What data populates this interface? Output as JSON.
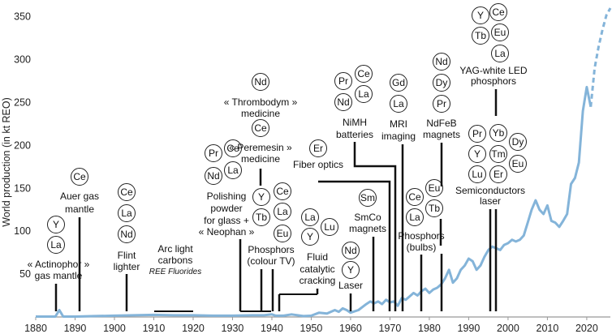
{
  "chart_data": {
    "type": "line",
    "ylabel": "World production (in kt REO)",
    "xlabel": "",
    "xlim": [
      1880,
      2026
    ],
    "ylim": [
      0,
      360
    ],
    "xticks": [
      1880,
      1890,
      1900,
      1910,
      1920,
      1930,
      1940,
      1950,
      1960,
      1970,
      1980,
      1990,
      2000,
      2010,
      2020
    ],
    "yticks": [
      50,
      100,
      150,
      200,
      250,
      300,
      350
    ],
    "grid": false,
    "line_color": "#84b4d9",
    "series": [
      {
        "values": [
          [
            1880,
            0.5
          ],
          [
            1885,
            0.5
          ],
          [
            1886,
            8
          ],
          [
            1887,
            0.5
          ],
          [
            1890,
            0.5
          ],
          [
            1895,
            1
          ],
          [
            1900,
            1.5
          ],
          [
            1905,
            2
          ],
          [
            1910,
            2.5
          ],
          [
            1915,
            2
          ],
          [
            1920,
            2
          ],
          [
            1925,
            1.5
          ],
          [
            1930,
            1.5
          ],
          [
            1935,
            2
          ],
          [
            1938,
            2
          ],
          [
            1940,
            3
          ],
          [
            1941,
            1.5
          ],
          [
            1943,
            1.5
          ],
          [
            1945,
            3
          ],
          [
            1948,
            1
          ],
          [
            1950,
            1.5
          ],
          [
            1952,
            5
          ],
          [
            1954,
            4
          ],
          [
            1956,
            8
          ],
          [
            1957,
            6
          ],
          [
            1958,
            10
          ],
          [
            1959,
            8
          ],
          [
            1960,
            5
          ],
          [
            1962,
            8
          ],
          [
            1964,
            15
          ],
          [
            1965,
            18
          ],
          [
            1966,
            16
          ],
          [
            1967,
            18
          ],
          [
            1968,
            15
          ],
          [
            1969,
            20
          ],
          [
            1970,
            17
          ],
          [
            1971,
            18
          ],
          [
            1972,
            13
          ],
          [
            1973,
            22
          ],
          [
            1974,
            20
          ],
          [
            1975,
            24
          ],
          [
            1976,
            28
          ],
          [
            1977,
            25
          ],
          [
            1978,
            30
          ],
          [
            1979,
            33
          ],
          [
            1980,
            28
          ],
          [
            1981,
            32
          ],
          [
            1982,
            34
          ],
          [
            1983,
            38
          ],
          [
            1984,
            45
          ],
          [
            1985,
            55
          ],
          [
            1986,
            40
          ],
          [
            1987,
            45
          ],
          [
            1988,
            55
          ],
          [
            1989,
            60
          ],
          [
            1990,
            68
          ],
          [
            1991,
            65
          ],
          [
            1992,
            55
          ],
          [
            1993,
            60
          ],
          [
            1994,
            70
          ],
          [
            1995,
            78
          ],
          [
            1996,
            82
          ],
          [
            1997,
            80
          ],
          [
            1998,
            78
          ],
          [
            1999,
            84
          ],
          [
            2000,
            86
          ],
          [
            2001,
            90
          ],
          [
            2002,
            88
          ],
          [
            2003,
            90
          ],
          [
            2004,
            95
          ],
          [
            2005,
            110
          ],
          [
            2006,
            125
          ],
          [
            2007,
            136
          ],
          [
            2008,
            125
          ],
          [
            2009,
            120
          ],
          [
            2010,
            130
          ],
          [
            2011,
            112
          ],
          [
            2012,
            110
          ],
          [
            2013,
            105
          ],
          [
            2014,
            112
          ],
          [
            2015,
            120
          ],
          [
            2016,
            155
          ],
          [
            2017,
            162
          ],
          [
            2018,
            180
          ],
          [
            2019,
            240
          ],
          [
            2020,
            268
          ],
          [
            2021,
            245
          ]
        ],
        "projection": [
          [
            2021,
            245
          ],
          [
            2022,
            290
          ],
          [
            2023,
            315
          ],
          [
            2024,
            335
          ],
          [
            2025,
            352
          ],
          [
            2026,
            360
          ]
        ]
      }
    ],
    "annotations": [
      {
        "elements": [
          "Y",
          "La"
        ],
        "label_top": "",
        "label_lines": [
          "« Actinophor »",
          "gas mantle"
        ],
        "year": 1885
      },
      {
        "elements": [
          "Ce"
        ],
        "label_top": "",
        "label_lines": [
          "Auer gas",
          "mantle"
        ],
        "year": 1891
      },
      {
        "elements": [
          "Ce",
          "La",
          "Nd"
        ],
        "label_lines": [
          "Flint",
          "lighter"
        ],
        "year": 1903
      },
      {
        "elements": [],
        "label_lines": [
          "Arc light",
          "carbons"
        ],
        "sublabel": "REE Fluorides",
        "year_range": [
          1910,
          1920
        ]
      },
      {
        "elements": [
          "Pr",
          "Ce",
          "Nd",
          "La"
        ],
        "label_lines": [
          "Polishing",
          "powder",
          "for glass +",
          "« Neophan »"
        ],
        "year_range": [
          1930,
          1940
        ]
      },
      {
        "elements": [
          "Nd"
        ],
        "label_lines": [
          "« Thrombodym »",
          "medicine"
        ],
        "year": 1938
      },
      {
        "elements": [
          "Ce"
        ],
        "label_lines": [
          "« Peremesin »",
          "medicine"
        ],
        "year": 1938
      },
      {
        "elements": [
          "Y",
          "Ce",
          "Tb",
          "La",
          "Eu"
        ],
        "label_lines": [
          "Phosphors",
          "(colour TV)"
        ],
        "year": 1940
      },
      {
        "elements": [
          "La",
          "Lu",
          "Y"
        ],
        "label_lines": [
          "Fluid",
          "catalytic",
          "cracking"
        ],
        "year": 1942
      },
      {
        "elements": [
          "Nd",
          "Y"
        ],
        "label_lines": [
          "Laser"
        ],
        "year": 1960
      },
      {
        "elements": [
          "Er"
        ],
        "label_lines": [
          "Fiber optics"
        ],
        "year": 1973
      },
      {
        "elements": [
          "Sm"
        ],
        "label_lines": [
          "SmCo",
          "magnets"
        ],
        "year": 1966
      },
      {
        "elements": [
          "Pr",
          "Ce",
          "Nd",
          "La"
        ],
        "label_lines": [
          "NiMH",
          "batteries"
        ],
        "year": 1976
      },
      {
        "elements": [
          "Gd",
          "La"
        ],
        "label_lines": [
          "MRI",
          "imaging"
        ],
        "year": 1973
      },
      {
        "elements": [
          "Ce",
          "Eu",
          "La",
          "Tb"
        ],
        "label_lines": [
          "Phosphors",
          "(bulbs)"
        ],
        "year": 1978
      },
      {
        "elements": [
          "Nd",
          "Dy",
          "Pr"
        ],
        "label_lines": [
          "NdFeB",
          "magnets"
        ],
        "year": 1984
      },
      {
        "elements": [
          "Pr",
          "Yb",
          "Dy",
          "Y",
          "Tm",
          "Lu",
          "Er",
          "Eu"
        ],
        "label_lines": [
          "Semiconductors",
          "laser"
        ],
        "year": 1996
      },
      {
        "elements": [
          "Y",
          "Ce",
          "Tb",
          "Eu",
          "La"
        ],
        "label_lines": [
          "YAG-white LED",
          "phosphors"
        ],
        "year": 1997
      }
    ]
  }
}
